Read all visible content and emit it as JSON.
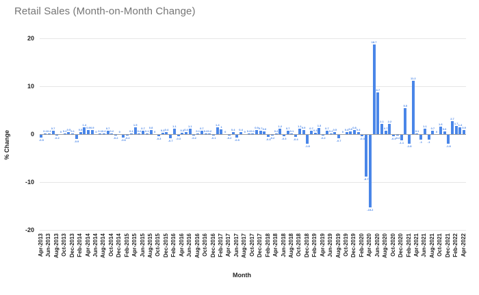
{
  "chart_data": {
    "type": "bar",
    "title": "Retail Sales (Month-on-Month Change)",
    "xlabel": "Month",
    "ylabel": "% Change",
    "ylim": [
      -20,
      20
    ],
    "yticks": [
      20,
      10,
      0,
      -10,
      -20
    ],
    "grid": "horizontal",
    "legend": "none",
    "bar_color": "#4a86e8",
    "x_tick_every": 2,
    "categories": [
      "Apr-2013",
      "May-2013",
      "Jun-2013",
      "Jul-2013",
      "Aug-2013",
      "Sep-2013",
      "Oct-2013",
      "Nov-2013",
      "Dec-2013",
      "Jan-2014",
      "Feb-2014",
      "Mar-2014",
      "Apr-2014",
      "May-2014",
      "Jun-2014",
      "Jul-2014",
      "Aug-2014",
      "Sep-2014",
      "Oct-2014",
      "Nov-2014",
      "Dec-2014",
      "Jan-2015",
      "Feb-2015",
      "Mar-2015",
      "Apr-2015",
      "May-2015",
      "Jun-2015",
      "Jul-2015",
      "Aug-2015",
      "Sep-2015",
      "Oct-2015",
      "Nov-2015",
      "Dec-2015",
      "Jan-2016",
      "Feb-2016",
      "Mar-2016",
      "Apr-2016",
      "May-2016",
      "Jun-2016",
      "Jul-2016",
      "Aug-2016",
      "Sep-2016",
      "Oct-2016",
      "Nov-2016",
      "Dec-2016",
      "Jan-2017",
      "Feb-2017",
      "Mar-2017",
      "Apr-2017",
      "May-2017",
      "Jun-2017",
      "Jul-2017",
      "Aug-2017",
      "Sep-2017",
      "Oct-2017",
      "Nov-2017",
      "Dec-2017",
      "Jan-2018",
      "Feb-2018",
      "Mar-2018",
      "Apr-2018",
      "May-2018",
      "Jun-2018",
      "Jul-2018",
      "Aug-2018",
      "Sep-2018",
      "Oct-2018",
      "Nov-2018",
      "Dec-2018",
      "Jan-2019",
      "Feb-2019",
      "Mar-2019",
      "Apr-2019",
      "May-2019",
      "Jun-2019",
      "Jul-2019",
      "Aug-2019",
      "Sep-2019",
      "Oct-2019",
      "Nov-2019",
      "Dec-2019",
      "Jan-2020",
      "Feb-2020",
      "Mar-2020",
      "Apr-2020",
      "May-2020",
      "Jun-2020",
      "Jul-2020",
      "Aug-2020",
      "Sep-2020",
      "Oct-2020",
      "Nov-2020",
      "Dec-2020",
      "Jan-2021",
      "Feb-2021",
      "Mar-2021",
      "Apr-2021",
      "May-2021",
      "Jun-2021",
      "Jul-2021",
      "Aug-2021",
      "Sep-2021",
      "Oct-2021",
      "Nov-2021",
      "Dec-2021",
      "Jan-2022",
      "Feb-2022",
      "Mar-2022",
      "Apr-2022"
    ],
    "values": [
      -0.5,
      0.1,
      0.2,
      0.7,
      -0.2,
      0,
      0.2,
      0.5,
      0.1,
      -0.9,
      0.5,
      1.4,
      0.9,
      0.9,
      0,
      0.1,
      0.2,
      0.7,
      0.2,
      -0.2,
      0,
      -0.6,
      -0.2,
      0.1,
      1.5,
      0.2,
      0.7,
      0.1,
      0.8,
      0,
      -0.3,
      0.3,
      0.4,
      -0.7,
      1.1,
      -0.3,
      0.3,
      0.4,
      1.1,
      -0.2,
      0.1,
      0.7,
      0.2,
      0.2,
      -0.1,
      1.4,
      1.0,
      0,
      -0.2,
      0.4,
      -0.5,
      0.4,
      0,
      0.2,
      0.1,
      0.9,
      0.7,
      0.6,
      -0.4,
      -0.2,
      0.2,
      1.2,
      -0.3,
      0.7,
      0.1,
      -0.4,
      1.1,
      0.9,
      -1.8,
      0.7,
      0.3,
      1.3,
      -0.2,
      0.7,
      0.2,
      0.5,
      -0.7,
      0,
      0.4,
      0.6,
      0.8,
      0.4,
      -0.3,
      -8.7,
      -15.2,
      18.7,
      8.7,
      2.1,
      0.7,
      2.2,
      -0.3,
      -0.2,
      -1.1,
      5.5,
      -1.8,
      11.2,
      0.1,
      -1,
      1.1,
      -1,
      0.7,
      0,
      1.6,
      0.6,
      -1.8,
      2.7,
      1.7,
      1.4,
      0.9
    ]
  }
}
